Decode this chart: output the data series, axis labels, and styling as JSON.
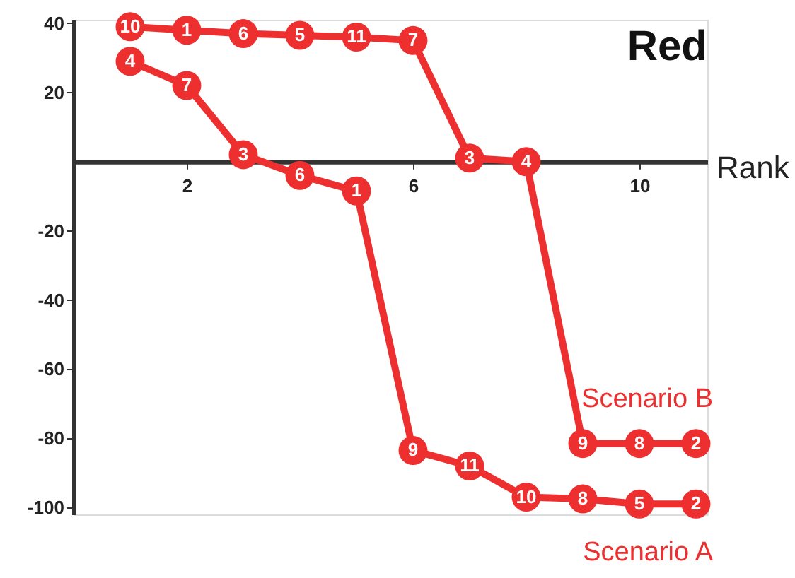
{
  "chart_data": {
    "type": "line",
    "title": "Red",
    "xlabel": "Rank",
    "x": [
      1,
      2,
      3,
      4,
      5,
      6,
      7,
      8,
      9,
      10,
      11
    ],
    "series": [
      {
        "name": "Scenario B",
        "color": "#ee2f2f",
        "values": [
          39,
          38,
          37,
          36.5,
          36,
          35,
          1,
          0,
          -81.5,
          -81.5,
          -81.5
        ]
      },
      {
        "name": "Scenario A",
        "color": "#ee2f2f",
        "values": [
          29,
          22,
          2,
          -4,
          -8.5,
          -83.5,
          -88,
          -97,
          -97.5,
          -99,
          -99
        ]
      }
    ],
    "annotations": [
      {
        "text": "10",
        "x": 1,
        "y": 39
      },
      {
        "text": "1",
        "x": 2,
        "y": 38
      },
      {
        "text": "6",
        "x": 3,
        "y": 37
      },
      {
        "text": "5",
        "x": 4,
        "y": 36.5
      },
      {
        "text": "11",
        "x": 5,
        "y": 36
      },
      {
        "text": "7",
        "x": 6,
        "y": 35
      },
      {
        "text": "3",
        "x": 7,
        "y": 1
      },
      {
        "text": "4",
        "x": 8,
        "y": 0
      },
      {
        "text": "9",
        "x": 9,
        "y": -81.5
      },
      {
        "text": "8",
        "x": 10,
        "y": -81.5
      },
      {
        "text": "2",
        "x": 11,
        "y": -81.5
      },
      {
        "text": "4",
        "x": 1,
        "y": 29
      },
      {
        "text": "7",
        "x": 2,
        "y": 22
      },
      {
        "text": "3",
        "x": 3,
        "y": 2
      },
      {
        "text": "6",
        "x": 4,
        "y": -4
      },
      {
        "text": "1",
        "x": 5,
        "y": -8.5
      },
      {
        "text": "9",
        "x": 6,
        "y": -83.5
      },
      {
        "text": "11",
        "x": 7,
        "y": -88
      },
      {
        "text": "10",
        "x": 8,
        "y": -97
      },
      {
        "text": "8",
        "x": 9,
        "y": -97.5
      },
      {
        "text": "5",
        "x": 10,
        "y": -99
      },
      {
        "text": "2",
        "x": 11,
        "y": -99
      }
    ],
    "xlim": [
      0,
      11.2
    ],
    "ylim": [
      -102,
      41
    ],
    "xticks": [
      2,
      {
        "value": 4,
        "label": null
      },
      6,
      {
        "value": 8,
        "label": null
      },
      10
    ],
    "yticks": [
      40,
      20,
      -20,
      -40,
      -60,
      -80,
      -100
    ],
    "marker": "circle",
    "line_style": "solid",
    "grid": false
  }
}
